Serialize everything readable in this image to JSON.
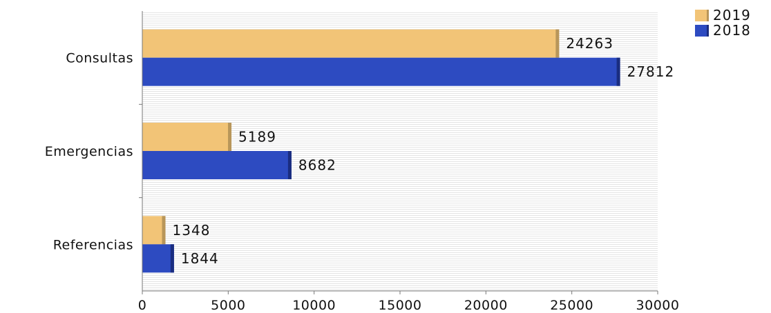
{
  "chart_data": {
    "type": "bar",
    "orientation": "horizontal",
    "categories": [
      "Consultas",
      "Emergencias",
      "Referencias"
    ],
    "series": [
      {
        "name": "2019",
        "values": [
          24263,
          5189,
          1348
        ]
      },
      {
        "name": "2018",
        "values": [
          27812,
          8682,
          1844
        ]
      }
    ],
    "xlim": [
      0,
      30000
    ],
    "xticks": [
      0,
      5000,
      10000,
      15000,
      20000,
      25000,
      30000
    ],
    "title": "",
    "xlabel": "",
    "ylabel": "",
    "legend": "top-right",
    "grid": "horizontal-lines-background"
  },
  "colors": {
    "series_2019": "#f2c477",
    "series_2019_edge": "#b8965a",
    "series_2018": "#2d4bc1",
    "series_2018_edge": "#1a2d80",
    "grid_line": "#e2e2e2",
    "axis": "#777777"
  }
}
